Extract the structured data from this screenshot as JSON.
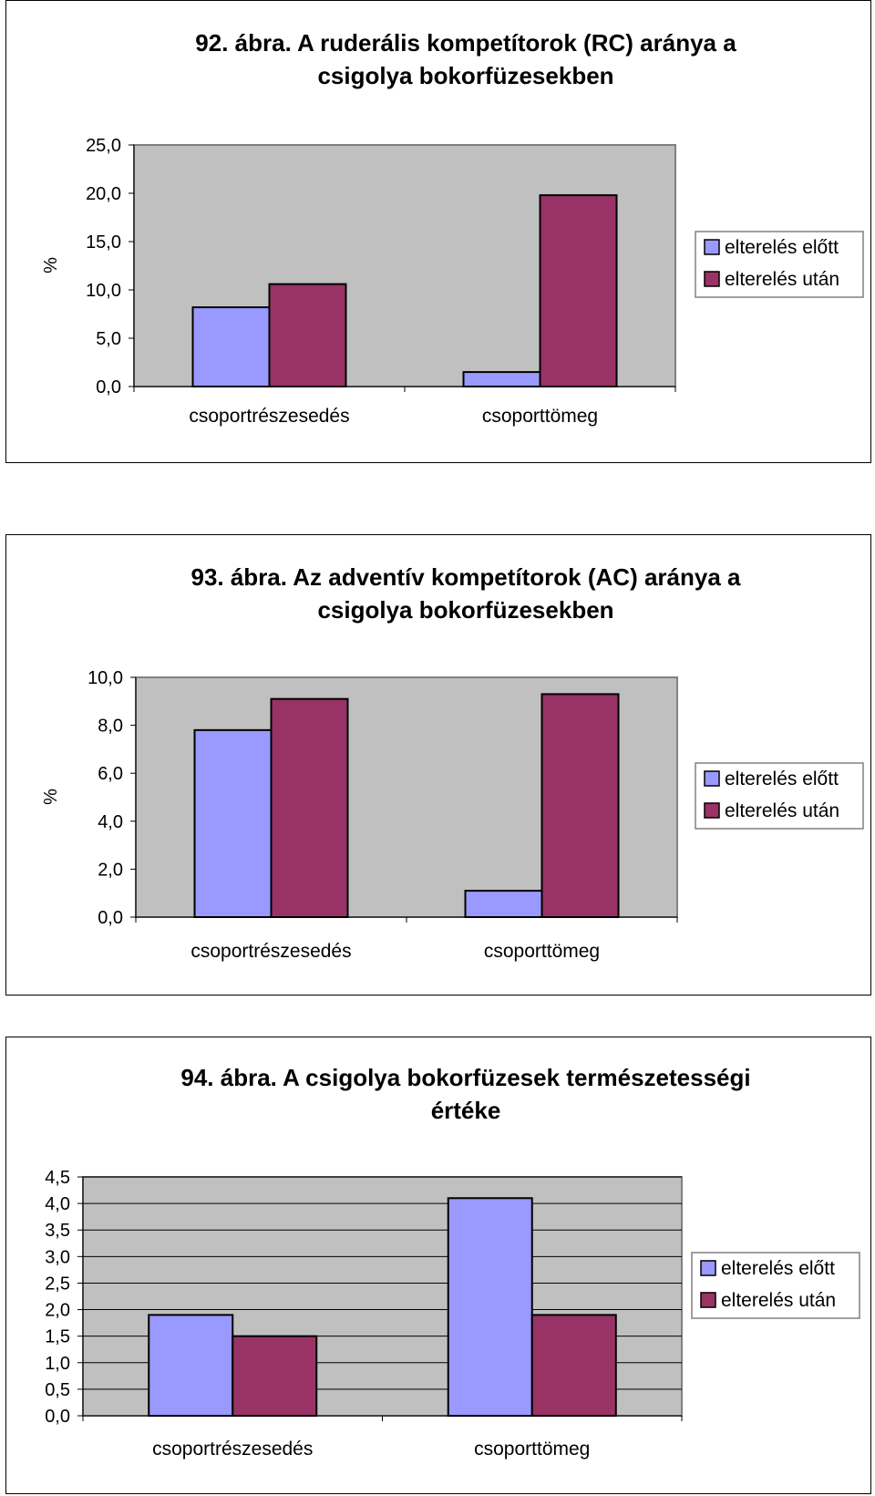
{
  "charts": [
    {
      "chart_data": {
        "type": "bar",
        "title_line1": "92. ábra. A ruderális kompetítorok (RC) aránya a",
        "title_line2": "csigolya bokorfüzesekben",
        "ylabel": "%",
        "categories": [
          "csoportrészesedés",
          "csoporttömeg"
        ],
        "series": [
          {
            "name": "elterelés előtt",
            "values": [
              8.2,
              1.5
            ]
          },
          {
            "name": "elterelés után",
            "values": [
              10.6,
              19.8
            ]
          }
        ],
        "ylim": [
          0,
          25
        ],
        "yticks": [
          "0,0",
          "5,0",
          "10,0",
          "15,0",
          "20,0",
          "25,0"
        ],
        "tick_values": [
          0,
          5,
          10,
          15,
          20,
          25
        ],
        "grid": false,
        "legend": "right"
      }
    },
    {
      "chart_data": {
        "type": "bar",
        "title_line1": "93. ábra. Az adventív kompetítorok (AC) aránya a",
        "title_line2": "csigolya bokorfüzesekben",
        "ylabel": "%",
        "categories": [
          "csoportrészesedés",
          "csoporttömeg"
        ],
        "series": [
          {
            "name": "elterelés előtt",
            "values": [
              7.8,
              1.1
            ]
          },
          {
            "name": "elterelés után",
            "values": [
              9.1,
              9.3
            ]
          }
        ],
        "ylim": [
          0,
          10
        ],
        "yticks": [
          "0,0",
          "2,0",
          "4,0",
          "6,0",
          "8,0",
          "10,0"
        ],
        "tick_values": [
          0,
          2,
          4,
          6,
          8,
          10
        ],
        "grid": false,
        "legend": "right"
      }
    },
    {
      "chart_data": {
        "type": "bar",
        "title_line1": "94. ábra. A csigolya bokorfüzesek természetességi",
        "title_line2": "értéke",
        "ylabel": "",
        "categories": [
          "csoportrészesedés",
          "csoporttömeg"
        ],
        "series": [
          {
            "name": "elterelés előtt",
            "values": [
              1.9,
              4.1
            ]
          },
          {
            "name": "elterelés után",
            "values": [
              1.5,
              1.9
            ]
          }
        ],
        "ylim": [
          0,
          4.5
        ],
        "yticks": [
          "0,0",
          "0,5",
          "1,0",
          "1,5",
          "2,0",
          "2,5",
          "3,0",
          "3,5",
          "4,0",
          "4,5"
        ],
        "tick_values": [
          0,
          0.5,
          1,
          1.5,
          2,
          2.5,
          3,
          3.5,
          4,
          4.5
        ],
        "grid": true,
        "legend": "right"
      }
    }
  ],
  "colors": {
    "series1": "#9999ff",
    "series2": "#993366",
    "plot_bg": "#c0c0c0",
    "axis": "#808080"
  }
}
